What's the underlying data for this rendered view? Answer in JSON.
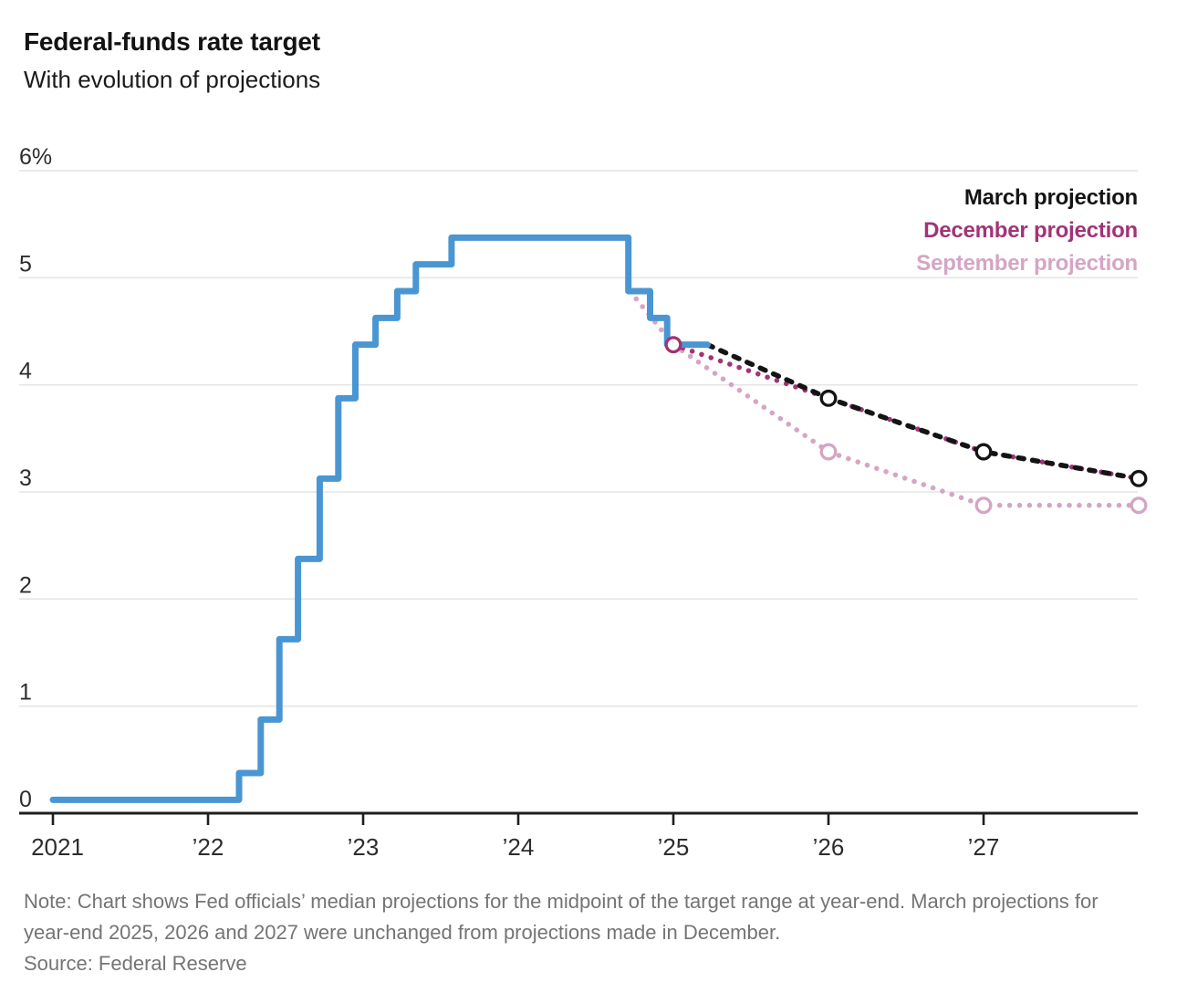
{
  "header": {
    "title": "Federal-funds rate target",
    "subtitle": "With evolution of projections"
  },
  "legend": {
    "items": [
      {
        "id": "march",
        "label": "March projection",
        "color": "#141414"
      },
      {
        "id": "december",
        "label": "December projection",
        "color": "#A23377"
      },
      {
        "id": "september",
        "label": "September projection",
        "color": "#D5A5C5"
      }
    ]
  },
  "footer": {
    "note": "Note: Chart shows Fed officials’ median projections for the midpoint of the target range at year-end. March projections for year-end 2025, 2026 and 2027 were unchanged from projections made in December.",
    "source": "Source: Federal Reserve"
  },
  "chart_data": {
    "type": "line",
    "title": "Federal-funds rate target",
    "subtitle": "With evolution of projections",
    "unit": "percent",
    "ylim": [
      0,
      6
    ],
    "xlim": [
      2021,
      2028
    ],
    "grid": "horizontal",
    "legend_position": "top-right",
    "yticks": [
      {
        "value": 6,
        "label": "6%"
      },
      {
        "value": 5,
        "label": "5"
      },
      {
        "value": 4,
        "label": "4"
      },
      {
        "value": 3,
        "label": "3"
      },
      {
        "value": 2,
        "label": "2"
      },
      {
        "value": 1,
        "label": "1"
      },
      {
        "value": 0,
        "label": "0"
      }
    ],
    "xticks": [
      {
        "value": 2021,
        "label": "2021"
      },
      {
        "value": 2022,
        "label": "’22"
      },
      {
        "value": 2023,
        "label": "’23"
      },
      {
        "value": 2024,
        "label": "’24"
      },
      {
        "value": 2025,
        "label": "’25"
      },
      {
        "value": 2026,
        "label": "’26"
      },
      {
        "value": 2027,
        "label": "’27"
      }
    ],
    "series": [
      {
        "id": "actual",
        "name": "Federal-funds rate target (range midpoint, actual)",
        "type": "step",
        "color": "#4A96D2",
        "line_width": 7,
        "steps": [
          [
            2021.0,
            0.125
          ],
          [
            2022.2,
            0.375
          ],
          [
            2022.34,
            0.875
          ],
          [
            2022.46,
            1.625
          ],
          [
            2022.58,
            2.375
          ],
          [
            2022.72,
            3.125
          ],
          [
            2022.84,
            3.875
          ],
          [
            2022.95,
            4.375
          ],
          [
            2023.08,
            4.625
          ],
          [
            2023.22,
            4.875
          ],
          [
            2023.34,
            5.125
          ],
          [
            2023.57,
            5.375
          ],
          [
            2024.71,
            4.875
          ],
          [
            2024.85,
            4.625
          ],
          [
            2024.96,
            4.375
          ]
        ],
        "end_x": 2025.22
      },
      {
        "id": "september",
        "name": "September projection",
        "type": "dotted",
        "color": "#D5A5C5",
        "points": [
          [
            2024.72,
            4.875
          ],
          [
            2025.0,
            4.375
          ],
          [
            2026.0,
            3.375
          ],
          [
            2027.0,
            2.875
          ],
          [
            2028.0,
            2.875
          ]
        ],
        "markers": [
          [
            2026.0,
            3.375
          ],
          [
            2027.0,
            2.875
          ],
          [
            2028.0,
            2.875
          ]
        ]
      },
      {
        "id": "december",
        "name": "December projection",
        "type": "dotted",
        "color": "#A23377",
        "points": [
          [
            2025.0,
            4.375
          ],
          [
            2026.0,
            3.875
          ],
          [
            2027.0,
            3.375
          ],
          [
            2028.0,
            3.125
          ]
        ],
        "markers": [
          [
            2025.0,
            4.375
          ]
        ]
      },
      {
        "id": "march",
        "name": "March projection",
        "type": "dashed",
        "color": "#141414",
        "points": [
          [
            2025.22,
            4.375
          ],
          [
            2026.0,
            3.875
          ],
          [
            2027.0,
            3.375
          ],
          [
            2028.0,
            3.125
          ]
        ],
        "markers": [
          [
            2026.0,
            3.875
          ],
          [
            2027.0,
            3.375
          ],
          [
            2028.0,
            3.125
          ]
        ]
      }
    ]
  }
}
